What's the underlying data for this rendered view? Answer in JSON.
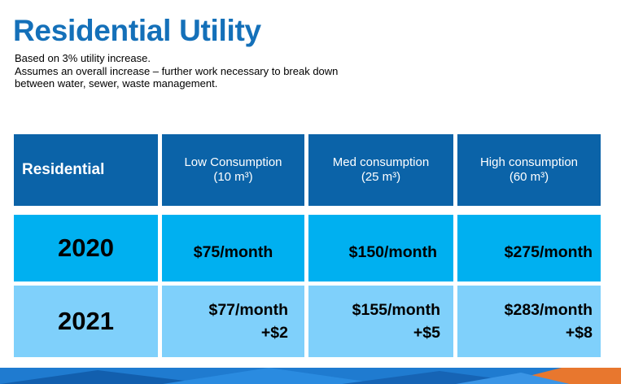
{
  "title": "Residential Utility",
  "subtitle_lines": [
    "Based on 3% utility increase.",
    "Assumes an overall increase – further work necessary to break down",
    "between water, sewer, waste management."
  ],
  "table": {
    "header": {
      "row_label": "Residential",
      "columns": [
        {
          "name": "Low Consumption",
          "unit": "(10 m³)"
        },
        {
          "name": "Med consumption",
          "unit": "(25 m³)"
        },
        {
          "name": "High consumption",
          "unit": "(60 m³)"
        }
      ]
    },
    "rows": [
      {
        "year": "2020",
        "cells": [
          {
            "price": "$75/month",
            "change": ""
          },
          {
            "price": "$150/month",
            "change": ""
          },
          {
            "price": "$275/month",
            "change": ""
          }
        ]
      },
      {
        "year": "2021",
        "cells": [
          {
            "price": "$77/month",
            "change": "+$2"
          },
          {
            "price": "$155/month",
            "change": "+$5"
          },
          {
            "price": "$283/month",
            "change": "+$8"
          }
        ]
      }
    ]
  },
  "colors": {
    "title": "#1470b9",
    "header_bg": "#0b63a8",
    "row_2020_bg": "#00b0f0",
    "row_2021_bg": "#7fd0fb",
    "band_blue": "#1a6fc0",
    "band_orange": "#e8772e"
  }
}
